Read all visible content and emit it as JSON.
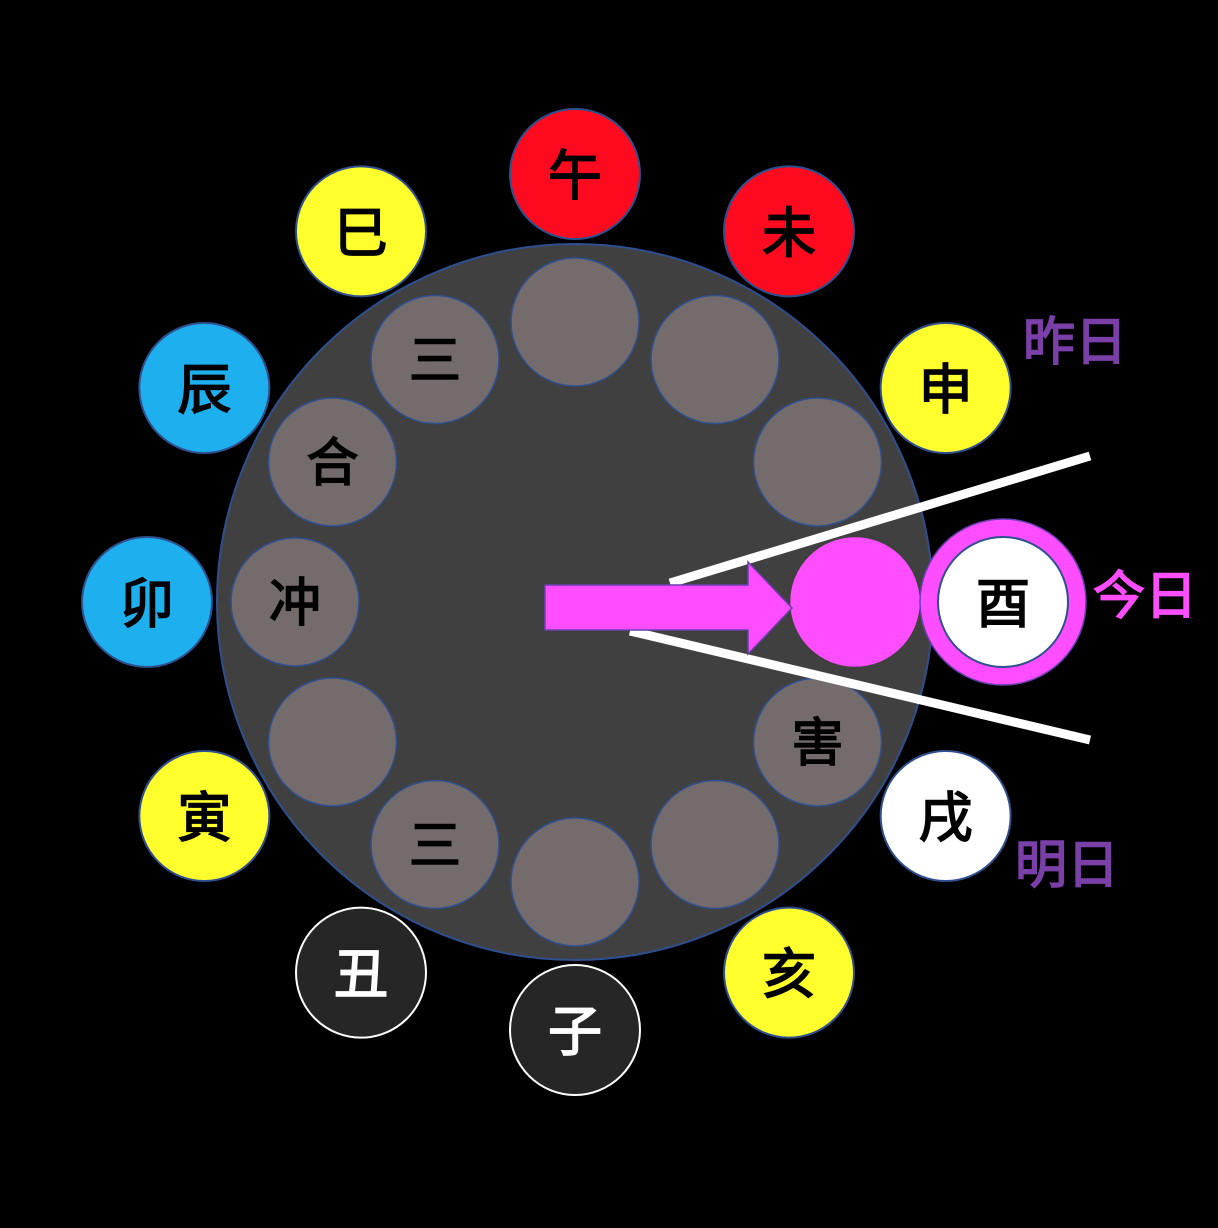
{
  "outer_branches": [
    {
      "id": "wu",
      "label": "午",
      "fill": "#FF0A1E",
      "text_color": "#000000",
      "stroke": "#2F4F8F"
    },
    {
      "id": "wei",
      "label": "未",
      "fill": "#FF0A1E",
      "text_color": "#000000",
      "stroke": "#2F4F8F"
    },
    {
      "id": "shen",
      "label": "申",
      "fill": "#FFFF2E",
      "text_color": "#000000",
      "stroke": "#2F4F8F"
    },
    {
      "id": "you",
      "label": "酉",
      "fill": "#FFFFFF",
      "text_color": "#000000",
      "stroke": "#2F4F8F",
      "highlight_ring": "#FF4DFF"
    },
    {
      "id": "xu",
      "label": "戌",
      "fill": "#FFFFFF",
      "text_color": "#000000",
      "stroke": "#2F4F8F"
    },
    {
      "id": "hai",
      "label": "亥",
      "fill": "#FFFF2E",
      "text_color": "#000000",
      "stroke": "#2F4F8F"
    },
    {
      "id": "zi",
      "label": "子",
      "fill": "#262626",
      "text_color": "#FFFFFF",
      "stroke": "#FFFFFF"
    },
    {
      "id": "chou",
      "label": "丑",
      "fill": "#262626",
      "text_color": "#FFFFFF",
      "stroke": "#FFFFFF"
    },
    {
      "id": "yin",
      "label": "寅",
      "fill": "#FFFF2E",
      "text_color": "#000000",
      "stroke": "#2F4F8F"
    },
    {
      "id": "mao",
      "label": "卯",
      "fill": "#1EB0EE",
      "text_color": "#000000",
      "stroke": "#2F4F8F"
    },
    {
      "id": "chen",
      "label": "辰",
      "fill": "#1EB0EE",
      "text_color": "#000000",
      "stroke": "#2F4F8F"
    },
    {
      "id": "si",
      "label": "巳",
      "fill": "#FFFF2E",
      "text_color": "#000000",
      "stroke": "#2F4F8F"
    }
  ],
  "inner_slots": [
    {
      "id": "slot-wu",
      "label": ""
    },
    {
      "id": "slot-wei",
      "label": ""
    },
    {
      "id": "slot-shen",
      "label": ""
    },
    {
      "id": "slot-you",
      "label": "",
      "active": true
    },
    {
      "id": "slot-xu",
      "label": "害"
    },
    {
      "id": "slot-hai",
      "label": ""
    },
    {
      "id": "slot-zi",
      "label": ""
    },
    {
      "id": "slot-chou",
      "label": "三"
    },
    {
      "id": "slot-yin",
      "label": ""
    },
    {
      "id": "slot-mao",
      "label": "冲"
    },
    {
      "id": "slot-chen",
      "label": "合"
    },
    {
      "id": "slot-si",
      "label": "三"
    }
  ],
  "day_labels": {
    "yesterday": "昨日",
    "today": "今日",
    "tomorrow": "明日"
  },
  "colors": {
    "background": "#000000",
    "dial": "#404040",
    "dial_stroke": "#2F4F8F",
    "inner_slot": "#746C6C",
    "inner_slot_stroke": "#2F4F8F",
    "active_slot": "#FF4DFF",
    "arrow": "#FF4DFF",
    "pointer_lines": "#FFFFFF",
    "yesterday_text": "#7B3FA8",
    "today_text": "#FF4DFF",
    "tomorrow_text": "#7B3FA8"
  }
}
